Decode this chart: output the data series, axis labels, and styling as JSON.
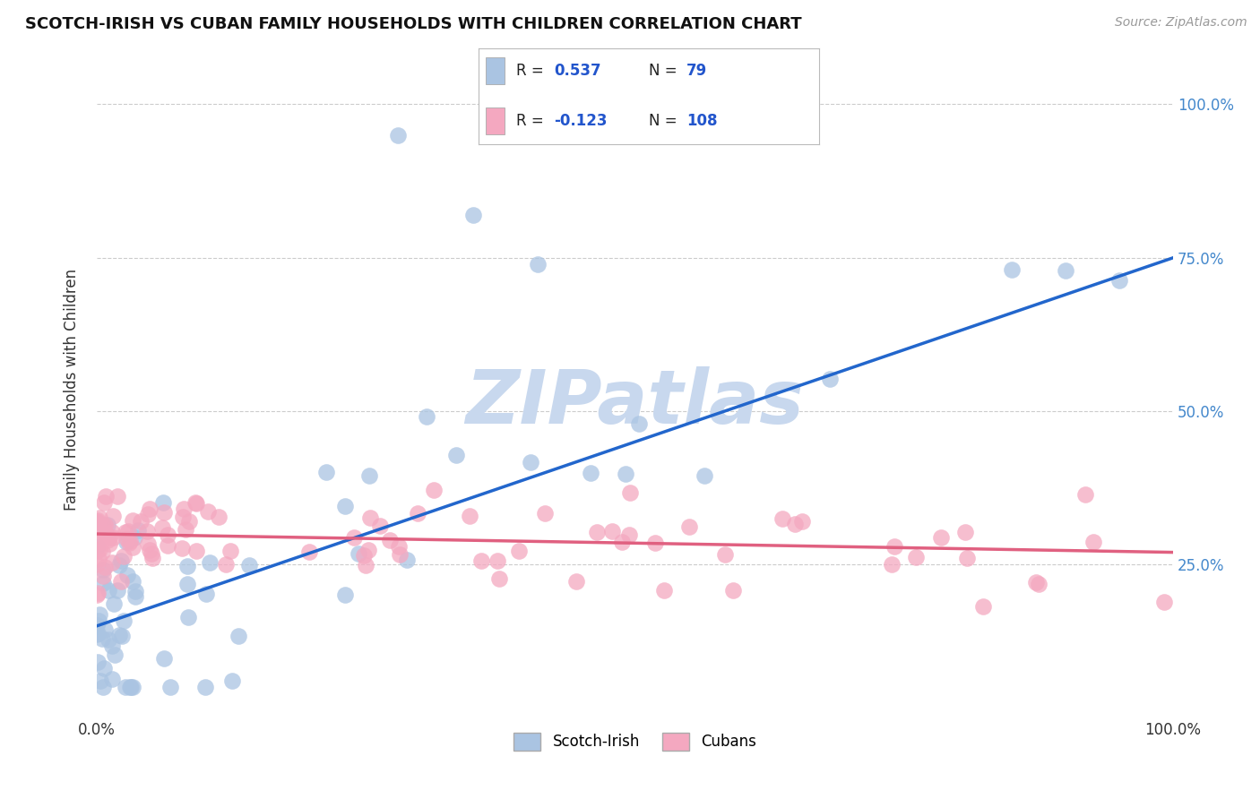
{
  "title": "SCOTCH-IRISH VS CUBAN FAMILY HOUSEHOLDS WITH CHILDREN CORRELATION CHART",
  "source": "Source: ZipAtlas.com",
  "ylabel": "Family Households with Children",
  "watermark": "ZIPatlas",
  "scotch_irish": {
    "label": "Scotch-Irish",
    "R": 0.537,
    "N": 79,
    "color": "#aac4e2",
    "line_color": "#2266cc",
    "line_start_y": 15.0,
    "line_end_y": 75.0
  },
  "cubans": {
    "label": "Cubans",
    "R": -0.123,
    "N": 108,
    "color": "#f4a8c0",
    "line_color": "#e06080",
    "line_start_y": 30.0,
    "line_end_y": 27.0
  },
  "xlim": [
    0,
    100
  ],
  "ylim": [
    0,
    107
  ],
  "ytick_values": [
    25,
    50,
    75,
    100
  ],
  "ytick_labels": [
    "25.0%",
    "50.0%",
    "75.0%",
    "100.0%"
  ],
  "xtick_values": [
    0,
    100
  ],
  "xtick_labels": [
    "0.0%",
    "100.0%"
  ],
  "background_color": "#ffffff",
  "grid_color": "#cccccc",
  "title_fontsize": 13,
  "tick_color": "#4488cc",
  "watermark_color": "#c8d8ee",
  "watermark_fontsize": 60,
  "legend_R_color": "#2255cc",
  "legend_text_color": "#222222"
}
